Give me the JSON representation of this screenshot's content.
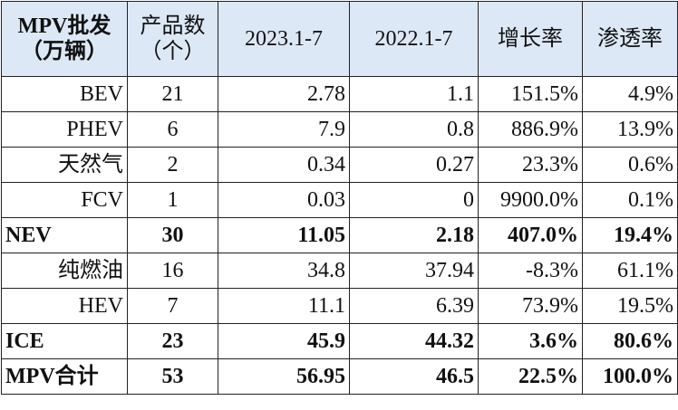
{
  "table": {
    "header": [
      [
        "MPV批发",
        "（万辆）"
      ],
      [
        "产品数",
        "（个）"
      ],
      [
        "2023.1-7"
      ],
      [
        "2022.1-7"
      ],
      [
        "增长率"
      ],
      [
        "渗透率"
      ]
    ],
    "rows": [
      [
        "BEV",
        "21",
        "2.78",
        "1.1",
        "151.5%",
        "4.9%"
      ],
      [
        "PHEV",
        "6",
        "7.9",
        "0.8",
        "886.9%",
        "13.9%"
      ],
      [
        "天然气",
        "2",
        "0.34",
        "0.27",
        "23.3%",
        "0.6%"
      ],
      [
        "FCV",
        "1",
        "0.03",
        "0",
        "9900.0%",
        "0.1%"
      ],
      [
        "NEV",
        "30",
        "11.05",
        "2.18",
        "407.0%",
        "19.4%"
      ],
      [
        "纯燃油",
        "16",
        "34.8",
        "37.94",
        "-8.3%",
        "61.1%"
      ],
      [
        "HEV",
        "7",
        "11.1",
        "6.39",
        "73.9%",
        "19.5%"
      ],
      [
        "ICE",
        "23",
        "45.9",
        "44.32",
        "3.6%",
        "80.6%"
      ],
      [
        "MPV合计",
        "53",
        "56.95",
        "46.5",
        "22.5%",
        "100.0%"
      ]
    ]
  }
}
